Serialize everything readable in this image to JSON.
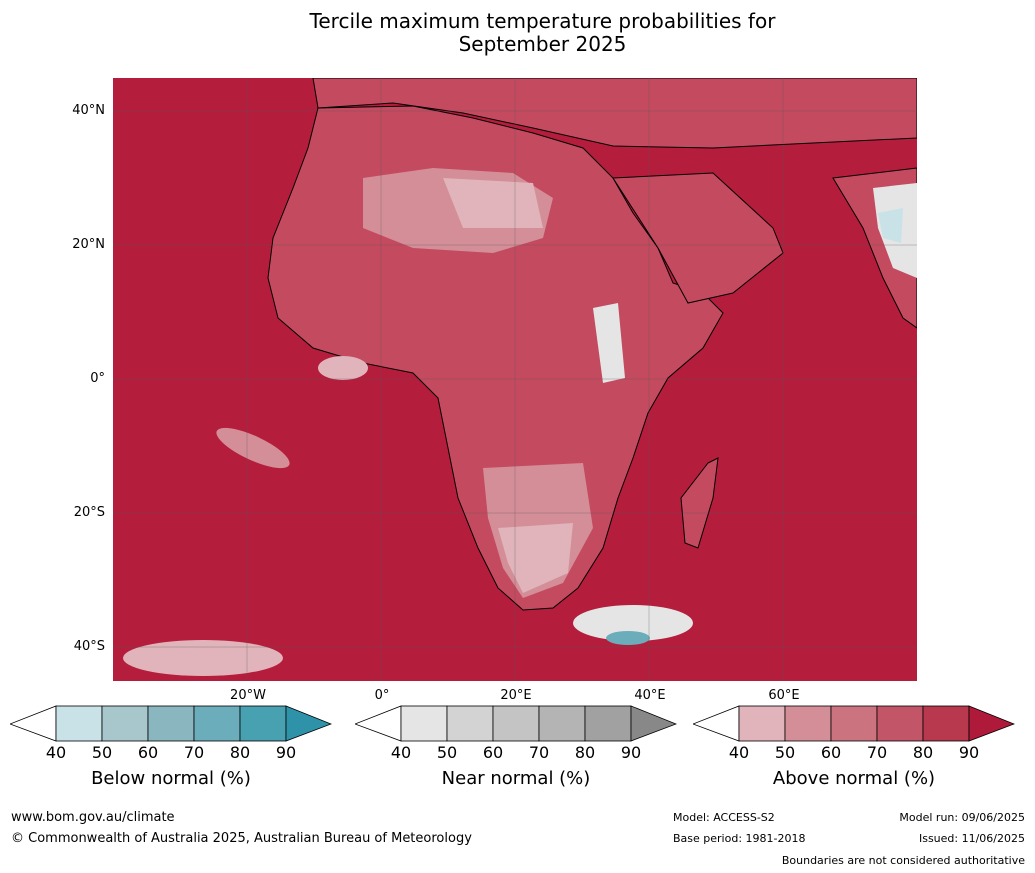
{
  "title_line1": "Tercile maximum temperature probabilities for",
  "title_line2": "September 2025",
  "lat_labels": [
    "40°N",
    "20°N",
    "0°",
    "20°S",
    "40°S"
  ],
  "lon_labels": [
    "20°W",
    "0°",
    "20°E",
    "40°E",
    "60°E"
  ],
  "legends": [
    {
      "title": "Below normal (%)",
      "ticks": [
        "40",
        "50",
        "60",
        "70",
        "80",
        "90"
      ],
      "colors": [
        "#ffffff",
        "#c9e2e8",
        "#a7c7cd",
        "#8ab6c0",
        "#6cadbb",
        "#48a1b1",
        "#2e92a8"
      ]
    },
    {
      "title": "Near normal (%)",
      "ticks": [
        "40",
        "50",
        "60",
        "70",
        "80",
        "90"
      ],
      "colors": [
        "#ffffff",
        "#e5e5e5",
        "#d3d3d3",
        "#c4c4c4",
        "#b4b4b4",
        "#a1a1a1",
        "#888888"
      ]
    },
    {
      "title": "Above normal (%)",
      "ticks": [
        "40",
        "50",
        "60",
        "70",
        "80",
        "90"
      ],
      "colors": [
        "#ffffff",
        "#e0b4ba",
        "#d48e98",
        "#cb737e",
        "#c25668",
        "#b8384d",
        "#b01a3a"
      ]
    }
  ],
  "footer": {
    "website": "www.bom.gov.au/climate",
    "copyright": "© Commonwealth of Australia 2025, Australian Bureau of Meteorology",
    "model": "Model: ACCESS-S2",
    "base_period": "Base period: 1981-2018",
    "model_run": "Model run: 09/06/2025",
    "issued": "Issued: 11/06/2025",
    "disclaimer": "Boundaries are not considered authoritative"
  }
}
